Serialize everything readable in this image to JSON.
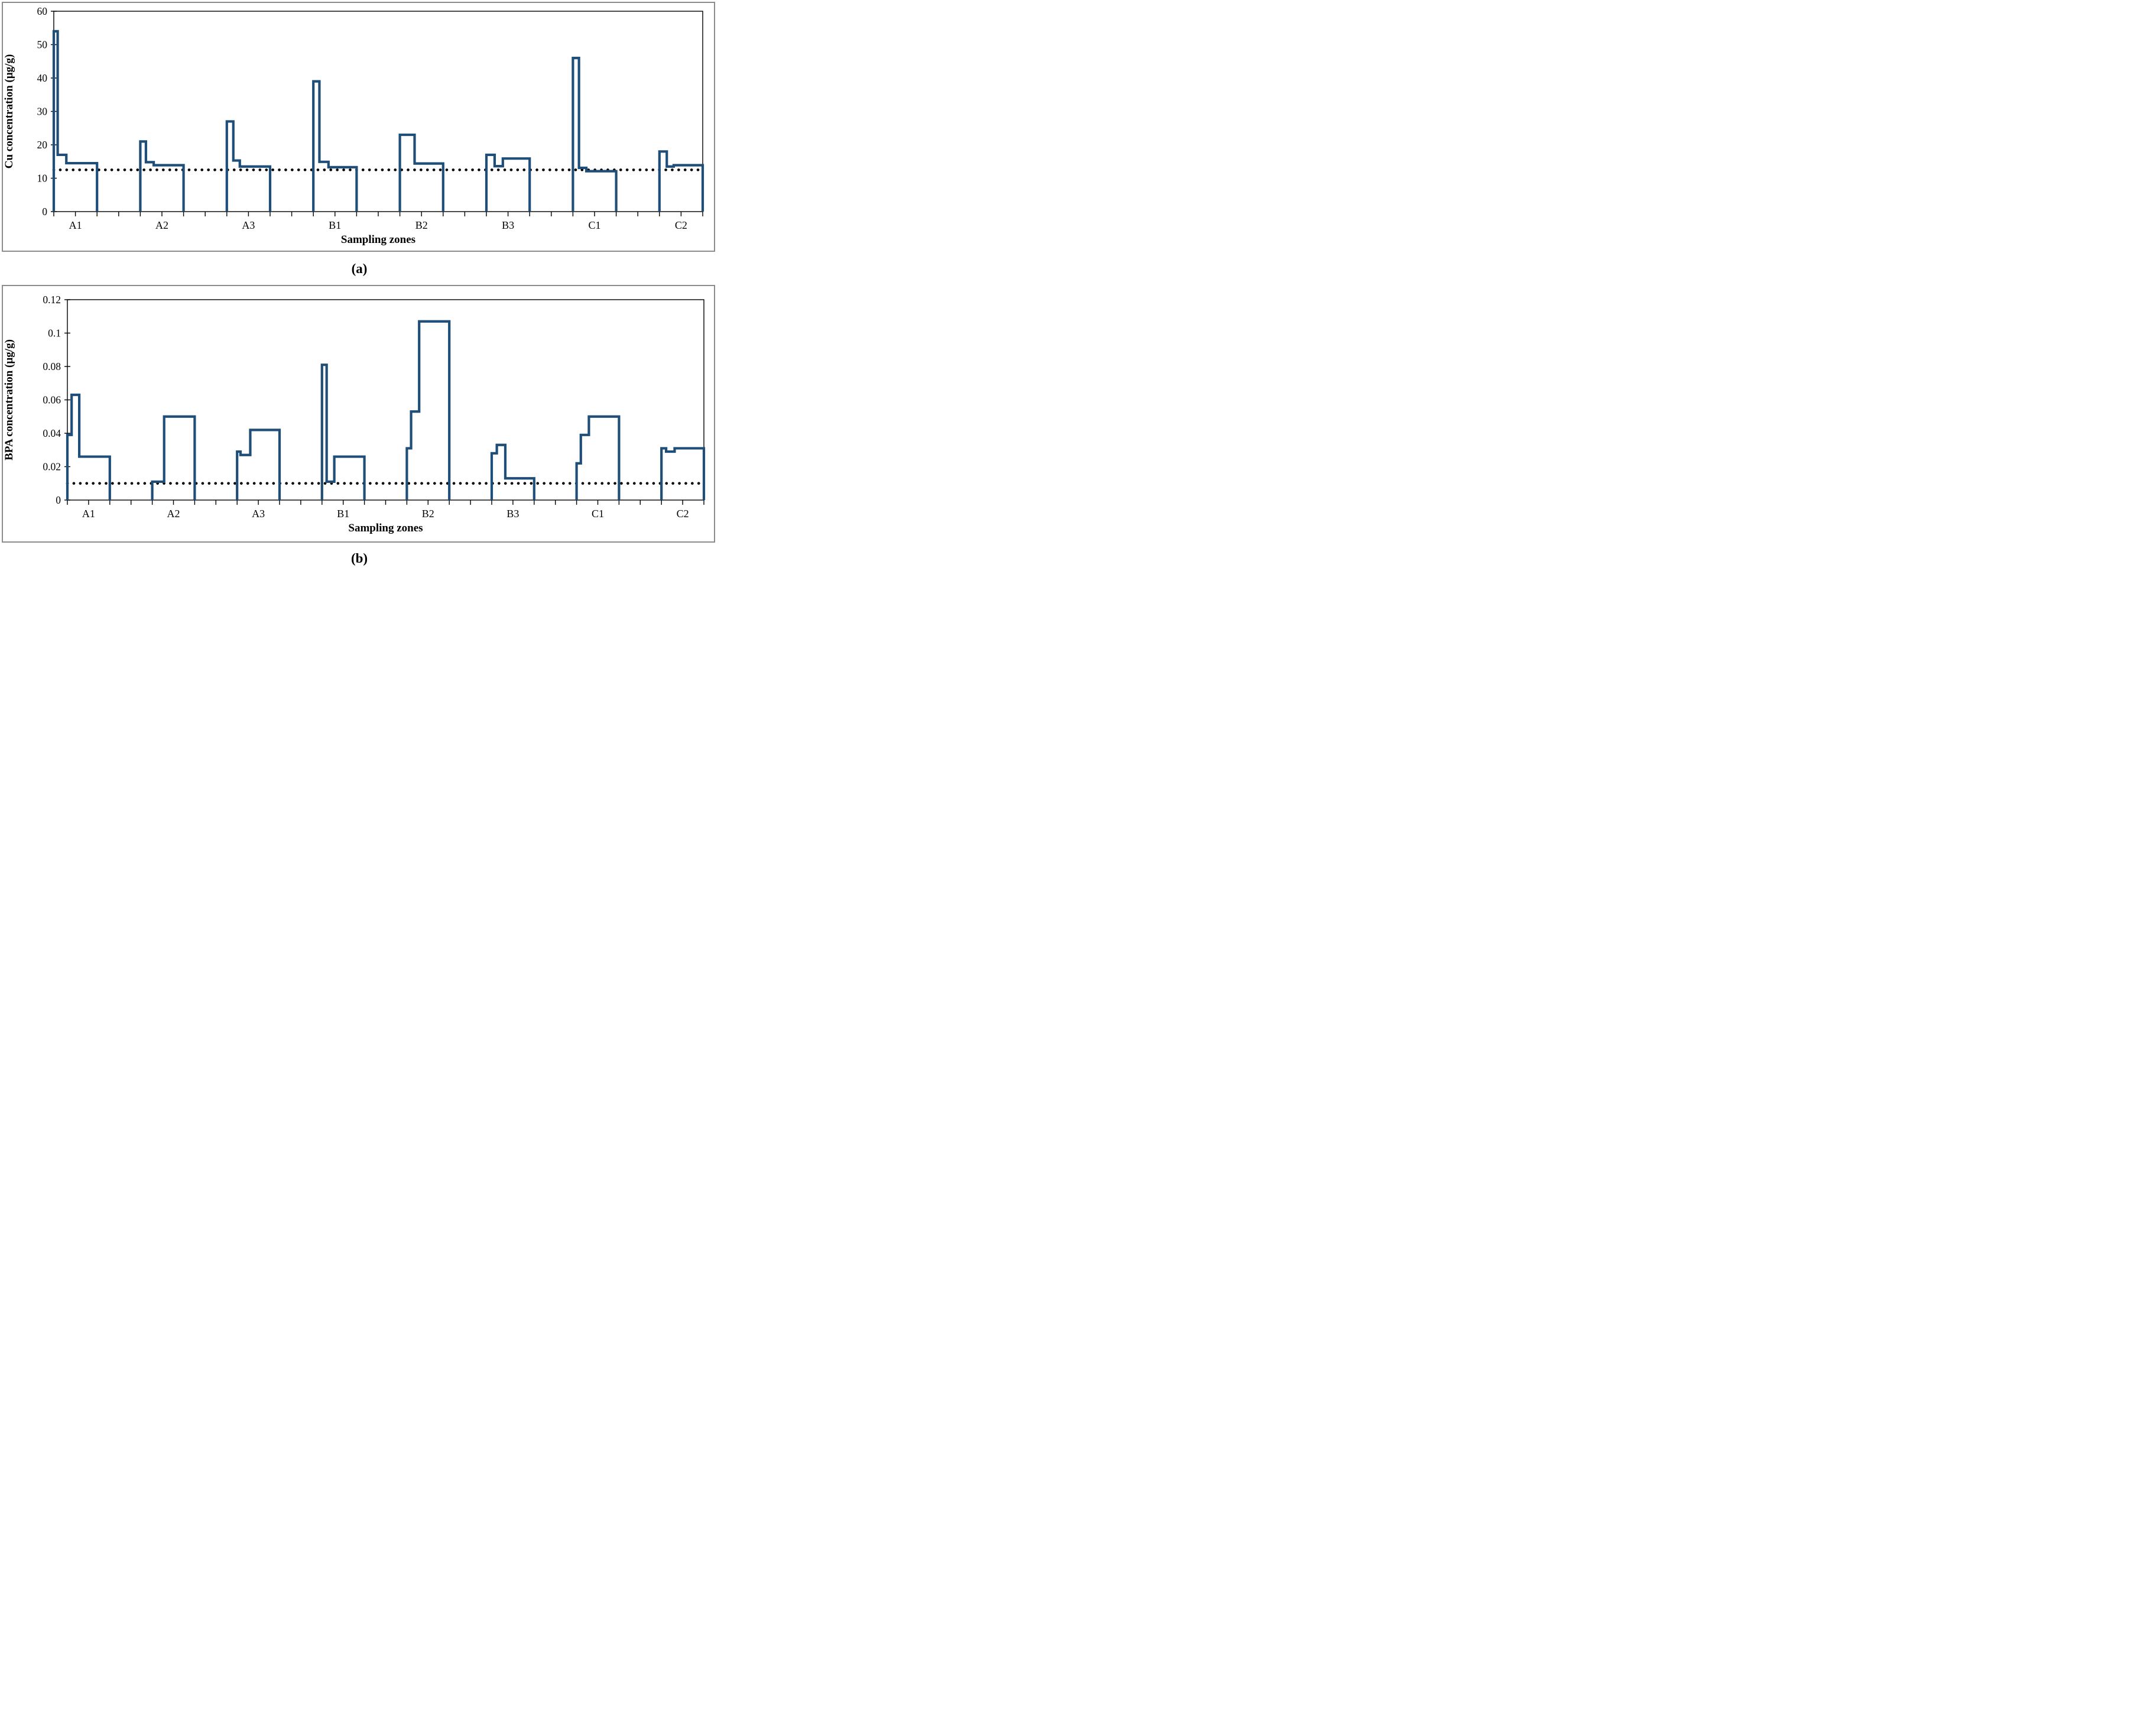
{
  "captions": {
    "a": "(a)",
    "b": "(b)"
  },
  "series_color": "#1F4E79",
  "chart_data": [
    {
      "type": "line",
      "subtype": "step",
      "panel": "a",
      "ylabel": "Cu concentration (µg/g)",
      "xlabel": "Sampling zones",
      "ylim": [
        0,
        60
      ],
      "yticks": [
        0,
        10,
        20,
        30,
        40,
        50,
        60
      ],
      "ytick_labels": [
        "0",
        "10",
        "20",
        "30",
        "40",
        "50",
        "60"
      ],
      "reference_line": 12.5,
      "grid": false,
      "legend": null,
      "layout": {
        "total_ticks": 30,
        "zone_pitch_ticks": 4,
        "zone_data_ticks": 2
      },
      "zones": [
        {
          "label": "A1",
          "steps": [
            {
              "value": 54,
              "width": 0.09
            },
            {
              "value": 17,
              "width": 0.2
            },
            {
              "value": 14.5,
              "width": 0.71
            }
          ]
        },
        {
          "label": "A2",
          "steps": [
            {
              "value": 21,
              "width": 0.13
            },
            {
              "value": 14.8,
              "width": 0.18
            },
            {
              "value": 13.9,
              "width": 0.69
            }
          ]
        },
        {
          "label": "A3",
          "steps": [
            {
              "value": 27,
              "width": 0.15
            },
            {
              "value": 15.3,
              "width": 0.15
            },
            {
              "value": 13.5,
              "width": 0.7
            }
          ]
        },
        {
          "label": "B1",
          "steps": [
            {
              "value": 39,
              "width": 0.14
            },
            {
              "value": 14.9,
              "width": 0.21
            },
            {
              "value": 13.3,
              "width": 0.65
            }
          ]
        },
        {
          "label": "B2",
          "steps": [
            {
              "value": 23,
              "width": 0.34
            },
            {
              "value": 14.4,
              "width": 0.66
            }
          ]
        },
        {
          "label": "B3",
          "steps": [
            {
              "value": 17,
              "width": 0.19
            },
            {
              "value": 13.6,
              "width": 0.19
            },
            {
              "value": 15.9,
              "width": 0.62
            }
          ]
        },
        {
          "label": "C1",
          "steps": [
            {
              "value": 46,
              "width": 0.14
            },
            {
              "value": 13.1,
              "width": 0.17
            },
            {
              "value": 12.1,
              "width": 0.69
            }
          ]
        },
        {
          "label": "C2",
          "steps": [
            {
              "value": 18,
              "width": 0.17
            },
            {
              "value": 13.5,
              "width": 0.16
            },
            {
              "value": 13.9,
              "width": 0.67
            }
          ]
        }
      ]
    },
    {
      "type": "line",
      "subtype": "step",
      "panel": "b",
      "ylabel": "BPA concentration (µg/g)",
      "xlabel": "Sampling zones",
      "ylim": [
        0,
        0.12
      ],
      "yticks": [
        0,
        0.02,
        0.04,
        0.06,
        0.08,
        0.1,
        0.12
      ],
      "ytick_labels": [
        "0",
        "0.02",
        "0.04",
        "0.06",
        "0.08",
        "0.1",
        "0.12"
      ],
      "reference_line": 0.01,
      "grid": false,
      "legend": null,
      "layout": {
        "total_ticks": 30,
        "zone_pitch_ticks": 4,
        "zone_data_ticks": 2
      },
      "zones": [
        {
          "label": "A1",
          "steps": [
            {
              "value": 0.039,
              "width": 0.1
            },
            {
              "value": 0.063,
              "width": 0.18
            },
            {
              "value": 0.026,
              "width": 0.72
            }
          ]
        },
        {
          "label": "A2",
          "steps": [
            {
              "value": 0.011,
              "width": 0.28
            },
            {
              "value": 0.05,
              "width": 0.72
            }
          ]
        },
        {
          "label": "A3",
          "steps": [
            {
              "value": 0.029,
              "width": 0.08
            },
            {
              "value": 0.027,
              "width": 0.23
            },
            {
              "value": 0.042,
              "width": 0.69
            }
          ]
        },
        {
          "label": "B1",
          "steps": [
            {
              "value": 0.081,
              "width": 0.11
            },
            {
              "value": 0.011,
              "width": 0.18
            },
            {
              "value": 0.026,
              "width": 0.71
            }
          ]
        },
        {
          "label": "B2",
          "steps": [
            {
              "value": 0.031,
              "width": 0.1
            },
            {
              "value": 0.053,
              "width": 0.19
            },
            {
              "value": 0.107,
              "width": 0.71
            }
          ]
        },
        {
          "label": "B3",
          "steps": [
            {
              "value": 0.028,
              "width": 0.12
            },
            {
              "value": 0.033,
              "width": 0.2
            },
            {
              "value": 0.013,
              "width": 0.68
            }
          ]
        },
        {
          "label": "C1",
          "steps": [
            {
              "value": 0.022,
              "width": 0.1
            },
            {
              "value": 0.039,
              "width": 0.19
            },
            {
              "value": 0.05,
              "width": 0.71
            }
          ]
        },
        {
          "label": "C2",
          "steps": [
            {
              "value": 0.031,
              "width": 0.11
            },
            {
              "value": 0.029,
              "width": 0.2
            },
            {
              "value": 0.031,
              "width": 0.69
            }
          ]
        }
      ]
    }
  ]
}
